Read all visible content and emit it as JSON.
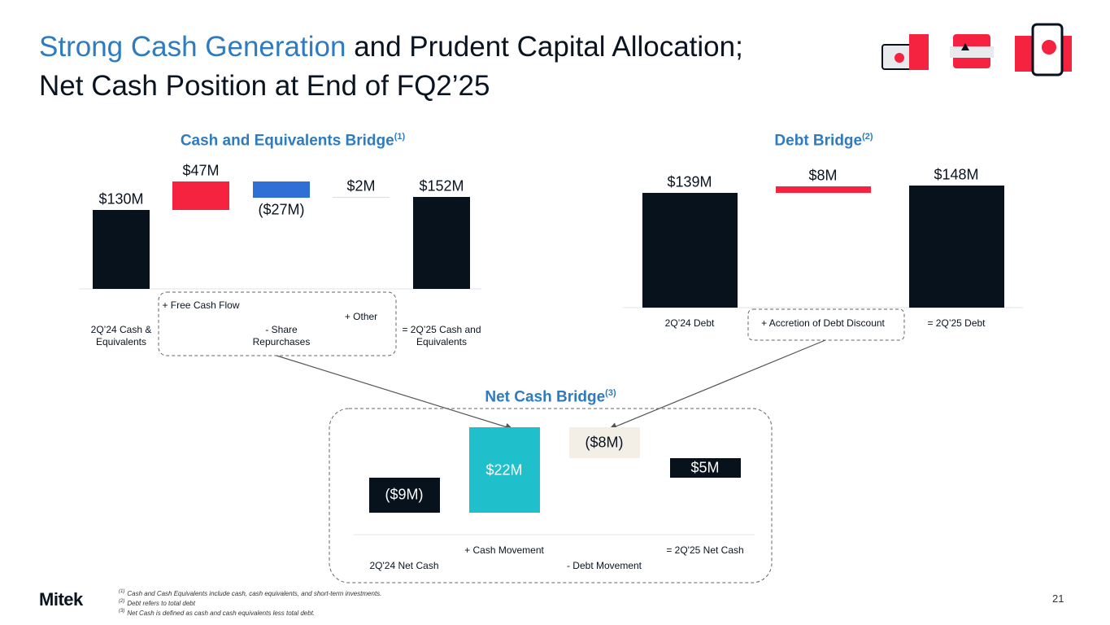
{
  "header": {
    "title_highlight": "Strong Cash Generation",
    "title_rest": "and Prudent Capital Allocation;",
    "title_line2": "Net Cash Position at End of FQ2’25"
  },
  "chart_data": [
    {
      "type": "waterfall",
      "title": "Cash and Equivalents Bridge",
      "note": "(1)",
      "categories": [
        "2Q’24 Cash & Equivalents",
        "+ Free Cash Flow",
        "- Share Repurchases",
        "+ Other",
        "= 2Q’25 Cash and Equivalents"
      ],
      "values": [
        130,
        47,
        -27,
        2,
        152
      ],
      "value_labels": [
        "$130M",
        "$47M",
        "($27M)",
        "$2M",
        "$152M"
      ],
      "colors": [
        "#07121c",
        "#f5233f",
        "#2f6fd6",
        "#d9dde2",
        "#07121c"
      ]
    },
    {
      "type": "waterfall",
      "title": "Debt Bridge",
      "note": "(2)",
      "categories": [
        "2Q’24 Debt",
        "+ Accretion of Debt Discount",
        "= 2Q’25 Debt"
      ],
      "values": [
        139,
        8,
        148
      ],
      "value_labels": [
        "$139M",
        "$8M",
        "$148M"
      ],
      "colors": [
        "#07121c",
        "#f5233f",
        "#07121c"
      ]
    },
    {
      "type": "waterfall",
      "title": "Net Cash Bridge",
      "note": "(3)",
      "categories": [
        "2Q'24 Net Cash",
        "+ Cash Movement",
        "- Debt Movement",
        "= 2Q'25 Net Cash"
      ],
      "values": [
        -9,
        22,
        -8,
        5
      ],
      "value_labels": [
        "($9M)",
        "$22M",
        "($8M)",
        "$5M"
      ],
      "colors": [
        "#07121c",
        "#1fbfcc",
        "#f3efe6",
        "#07121c"
      ]
    }
  ],
  "footer": {
    "logo": "Mitek",
    "page": "21",
    "footnotes": [
      {
        "marker": "(1)",
        "text": "Cash and Cash Equivalents include cash, cash equivalents, and short-term investments."
      },
      {
        "marker": "(2)",
        "text": "Debt refers to total debt"
      },
      {
        "marker": "(3)",
        "text": "Net Cash is defined as cash and cash equivalents less total debt."
      }
    ]
  }
}
